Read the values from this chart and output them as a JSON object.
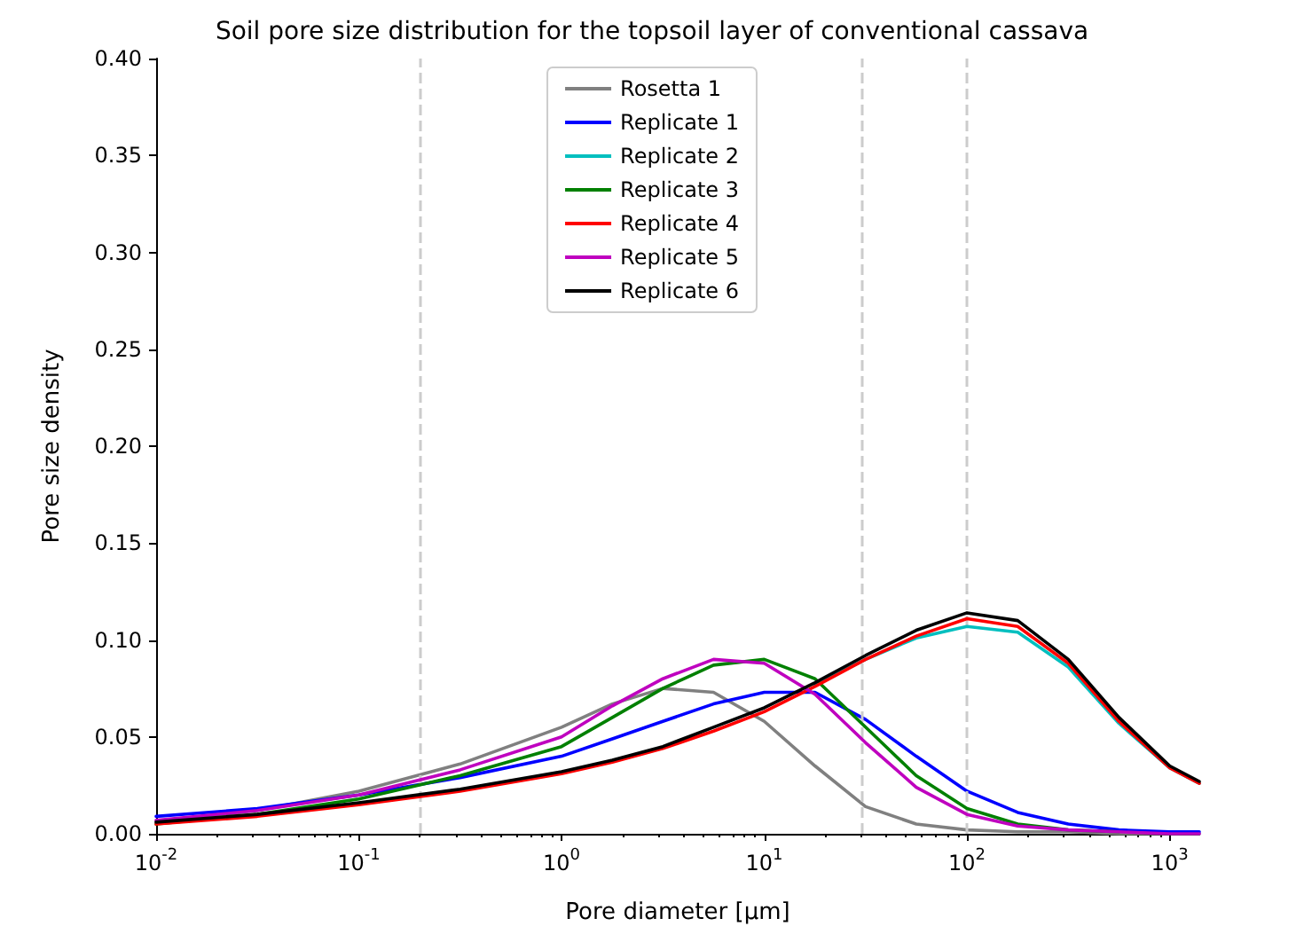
{
  "chart_data": {
    "type": "line",
    "title": "Soil pore size distribution for the topsoil layer of conventional cassava",
    "xlabel": "Pore diameter [µm]",
    "ylabel": "Pore size density",
    "log": "x",
    "x": [
      0.01,
      0.0316,
      0.1,
      0.316,
      1,
      1.78,
      3.16,
      5.62,
      10,
      17.8,
      31.6,
      56.2,
      100,
      178,
      316,
      562,
      1000,
      1400
    ],
    "xlim": [
      0.01,
      1400
    ],
    "xticks": [
      {
        "value": 0.01,
        "label": "10$^{-2}$"
      },
      {
        "value": 0.1,
        "label": "10$^{-1}$"
      },
      {
        "value": 1,
        "label": "10$^{0}$"
      },
      {
        "value": 10,
        "label": "10$^{1}$"
      },
      {
        "value": 100,
        "label": "10$^{2}$"
      },
      {
        "value": 1000,
        "label": "10$^{3}$"
      }
    ],
    "ylim": [
      0,
      0.4
    ],
    "yticks": [
      {
        "value": 0,
        "label": "0.00"
      },
      0.05,
      {
        "value": 0.1,
        "label": "0.10"
      },
      0.15,
      {
        "value": 0.2,
        "label": "0.20"
      },
      0.25,
      {
        "value": 0.3,
        "label": "0.30"
      },
      0.35,
      {
        "value": 0.4,
        "label": "0.40"
      }
    ],
    "grid": false,
    "legend": "top",
    "ref_lines": [
      {
        "axis": "x",
        "value": 0.2,
        "color": "#cccccc",
        "line_style": "dashed"
      },
      {
        "axis": "x",
        "value": 30,
        "color": "#cccccc",
        "line_style": "dashed"
      },
      {
        "axis": "x",
        "value": 100,
        "color": "#cccccc",
        "line_style": "dashed"
      }
    ],
    "series": [
      {
        "name": "Rosetta 1",
        "color": "#808080",
        "values": [
          0.006,
          0.012,
          0.022,
          0.036,
          0.055,
          0.067,
          0.075,
          0.073,
          0.058,
          0.035,
          0.014,
          0.005,
          0.002,
          0.001,
          0.001,
          0,
          0,
          0
        ]
      },
      {
        "name": "Replicate 1",
        "color": "#0000ff",
        "values": [
          0.009,
          0.013,
          0.02,
          0.029,
          0.04,
          0.049,
          0.058,
          0.067,
          0.073,
          0.073,
          0.059,
          0.04,
          0.022,
          0.011,
          0.005,
          0.002,
          0.001,
          0.001
        ]
      },
      {
        "name": "Replicate 2",
        "color": "#00bfbf",
        "values": [
          null,
          null,
          null,
          null,
          null,
          null,
          null,
          null,
          null,
          0.077,
          0.09,
          0.101,
          0.107,
          0.104,
          0.086,
          0.057,
          0.034,
          0.026
        ]
      },
      {
        "name": "Replicate 3",
        "color": "#008000",
        "values": [
          0.005,
          0.01,
          0.018,
          0.03,
          0.045,
          0.06,
          0.075,
          0.087,
          0.09,
          0.08,
          0.055,
          0.03,
          0.013,
          0.005,
          0.002,
          0.001,
          null,
          null
        ]
      },
      {
        "name": "Replicate 4",
        "color": "#ff0000",
        "values": [
          0.005,
          0.009,
          0.015,
          0.022,
          0.031,
          0.037,
          0.044,
          0.053,
          0.063,
          0.076,
          0.09,
          0.102,
          0.111,
          0.107,
          0.088,
          0.058,
          0.034,
          0.026
        ]
      },
      {
        "name": "Replicate 5",
        "color": "#bf00bf",
        "values": [
          0.007,
          0.012,
          0.02,
          0.033,
          0.05,
          0.066,
          0.08,
          0.09,
          0.088,
          0.072,
          0.047,
          0.024,
          0.01,
          0.004,
          0.002,
          0.001,
          0,
          0
        ]
      },
      {
        "name": "Replicate 6",
        "color": "#000000",
        "values": [
          0.006,
          0.01,
          0.016,
          0.023,
          0.032,
          0.038,
          0.045,
          0.055,
          0.065,
          0.078,
          0.092,
          0.105,
          0.114,
          0.11,
          0.09,
          0.06,
          0.035,
          0.027
        ]
      }
    ]
  }
}
